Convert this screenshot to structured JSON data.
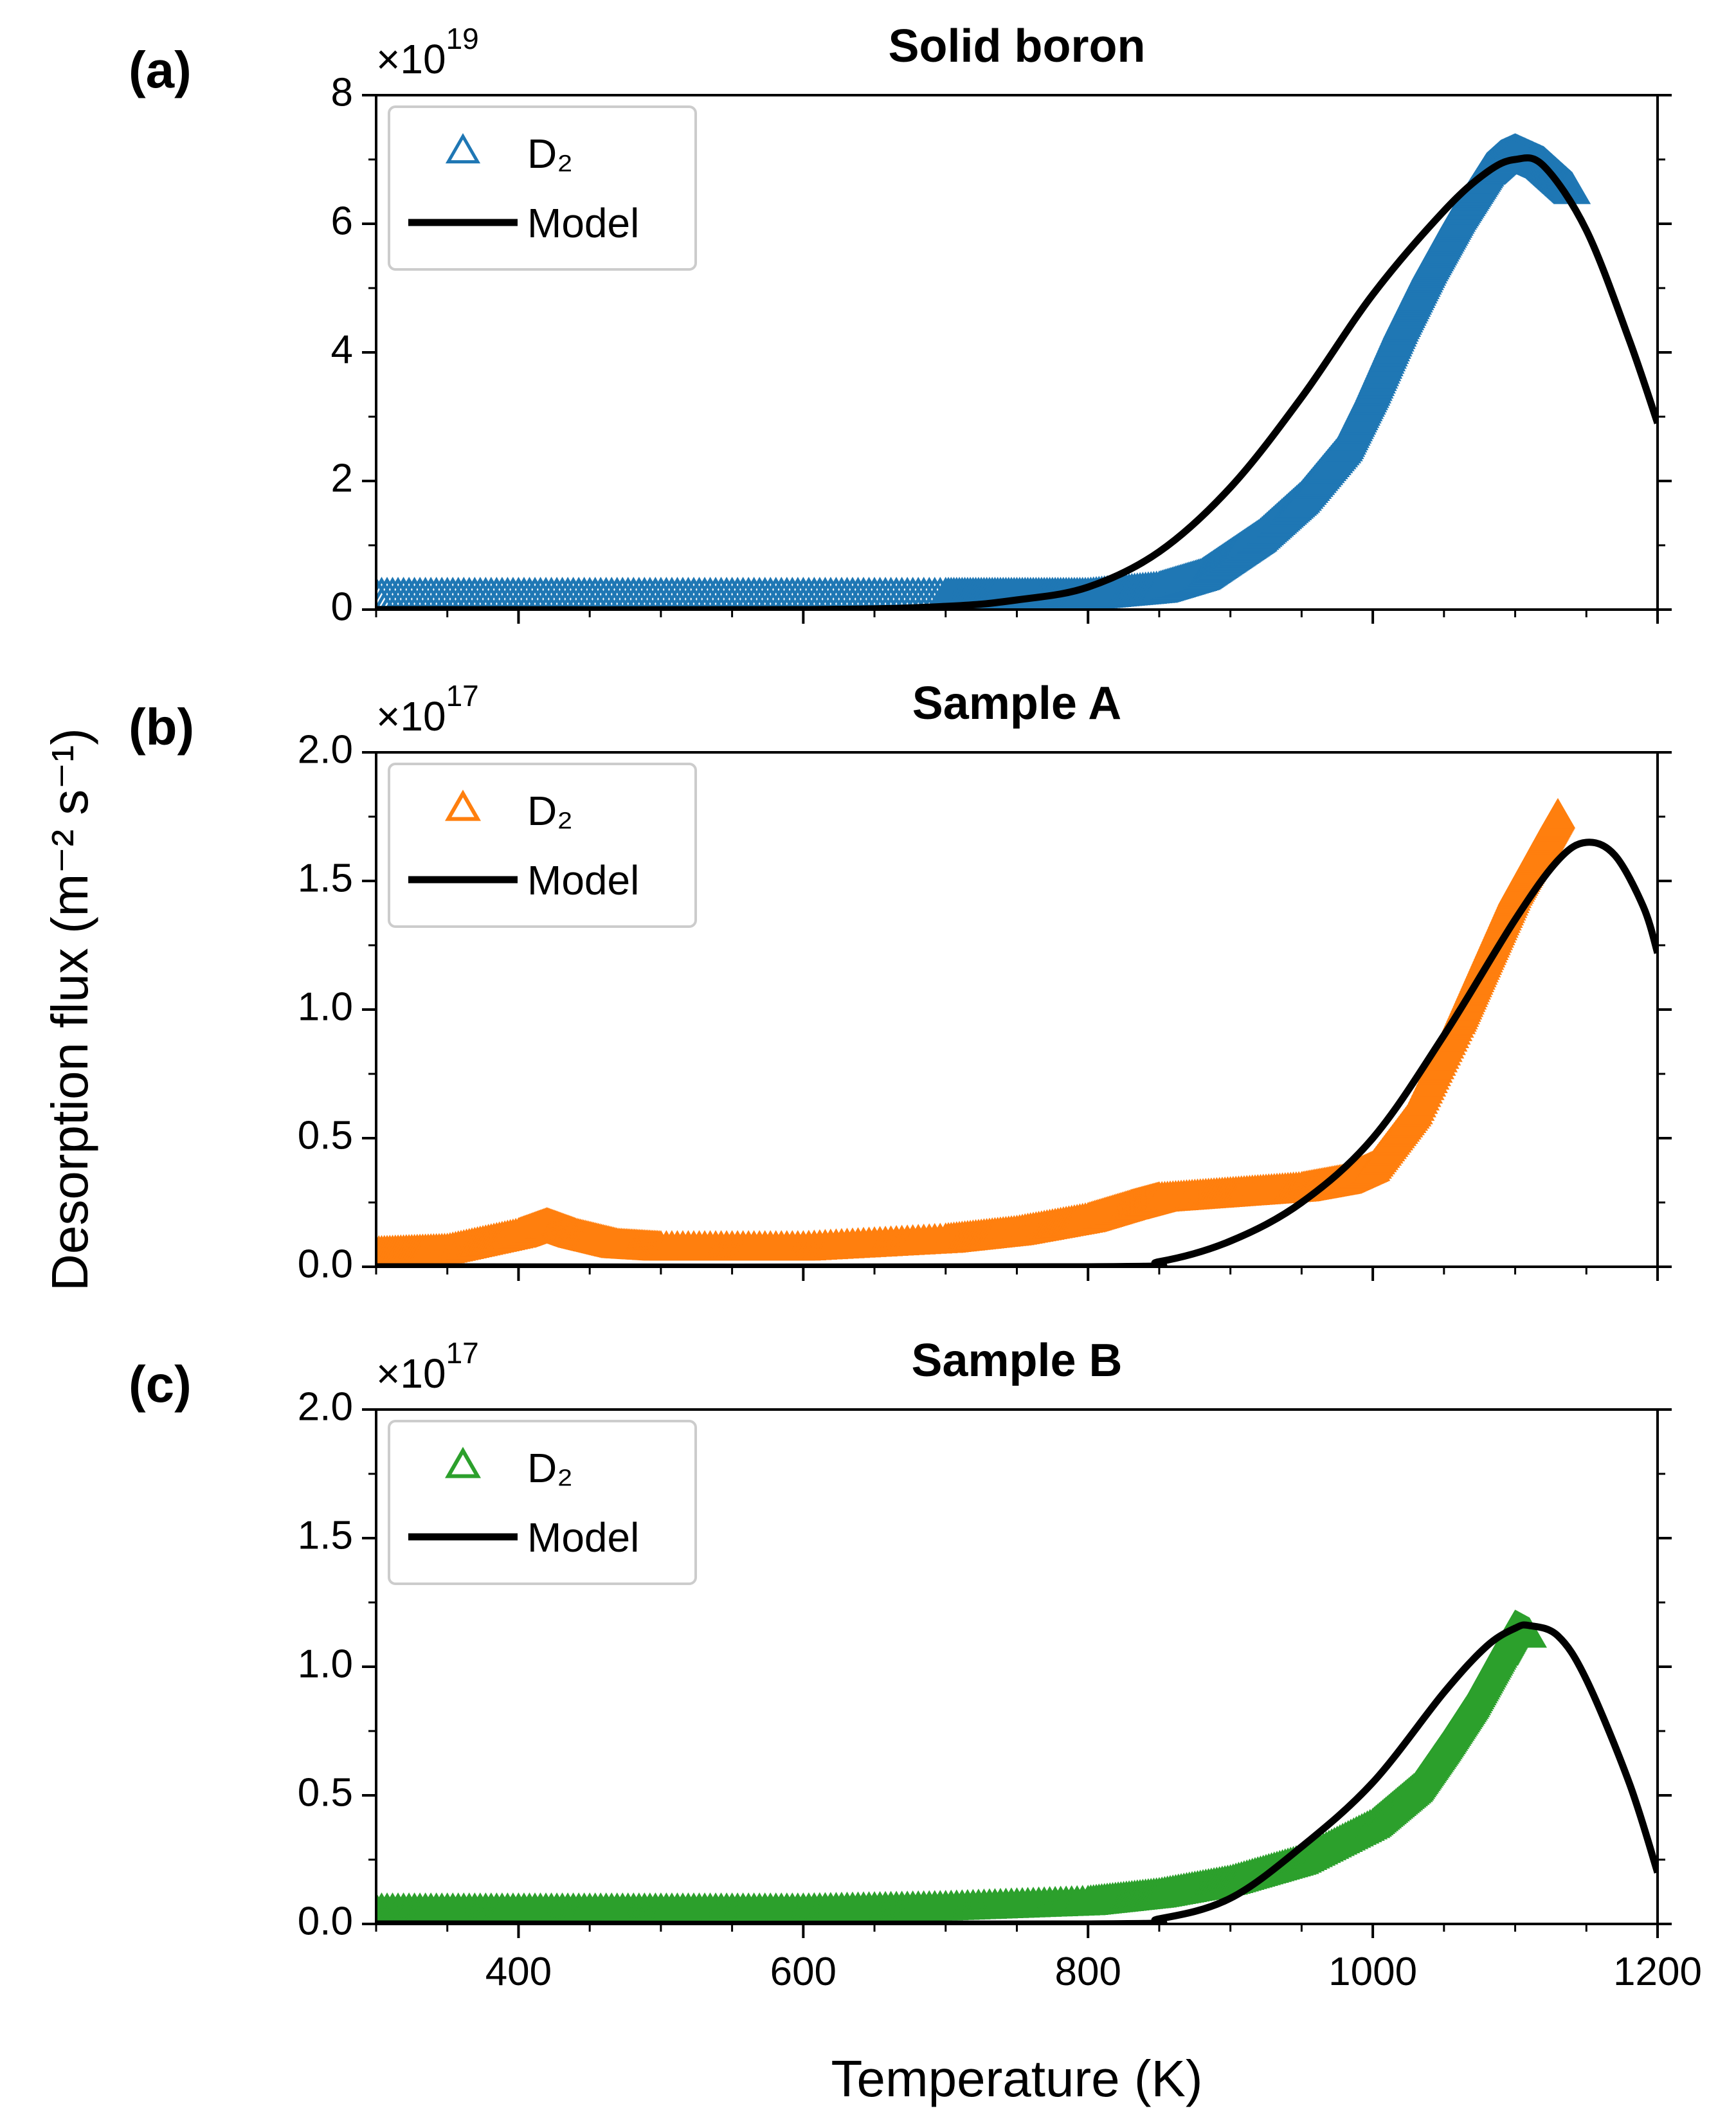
{
  "figure": {
    "ylabel": "Desorption flux (m⁻² s⁻¹)",
    "xlabel": "Temperature (K)"
  },
  "colors": {
    "blue": "#1f77b4",
    "orange": "#ff7f0e",
    "green": "#2ca02c",
    "model": "#000000"
  },
  "chart_data": [
    {
      "type": "scatter",
      "panel_label": "(a)",
      "title": "Solid boron",
      "multiplier_base": "×10",
      "multiplier_exp": "19",
      "xlim": [
        300,
        1200
      ],
      "ylim": [
        0,
        8
      ],
      "yticks": [
        "0",
        "2",
        "4",
        "6",
        "8"
      ],
      "xticks": [
        "400",
        "600",
        "800",
        "1000",
        "1200"
      ],
      "show_xtick_labels": false,
      "legend": {
        "position": "upper-left",
        "entries": [
          "D₂",
          "Model"
        ]
      },
      "series": [
        {
          "name": "D₂",
          "kind": "markers",
          "marker": "open-triangle",
          "color": "blue",
          "x": [
            300,
            400,
            500,
            600,
            700,
            750,
            800,
            850,
            880,
            900,
            920,
            950,
            980,
            1000,
            1020,
            1040,
            1060,
            1080,
            1090,
            1100,
            1110,
            1120,
            1130,
            1140
          ],
          "y": [
            0.2,
            0.2,
            0.2,
            0.2,
            0.2,
            0.2,
            0.2,
            0.3,
            0.5,
            0.8,
            1.1,
            1.7,
            2.5,
            3.4,
            4.4,
            5.3,
            6.1,
            6.8,
            7.0,
            7.1,
            7.0,
            6.9,
            6.7,
            6.5
          ]
        },
        {
          "name": "Model",
          "kind": "line",
          "color": "model",
          "x": [
            300,
            600,
            700,
            750,
            800,
            850,
            900,
            950,
            1000,
            1050,
            1080,
            1100,
            1120,
            1150,
            1180,
            1200
          ],
          "y": [
            0.0,
            0.0,
            0.05,
            0.15,
            0.35,
            0.9,
            1.9,
            3.3,
            4.9,
            6.2,
            6.8,
            7.0,
            6.9,
            5.9,
            4.2,
            2.9
          ]
        }
      ]
    },
    {
      "type": "scatter",
      "panel_label": "(b)",
      "title": "Sample A",
      "multiplier_base": "×10",
      "multiplier_exp": "17",
      "xlim": [
        300,
        1200
      ],
      "ylim": [
        0,
        2.0
      ],
      "yticks": [
        "0.0",
        "0.5",
        "1.0",
        "1.5",
        "2.0"
      ],
      "xticks": [
        "400",
        "600",
        "800",
        "1000",
        "1200"
      ],
      "show_xtick_labels": false,
      "legend": {
        "position": "upper-left",
        "entries": [
          "D₂",
          "Model"
        ]
      },
      "series": [
        {
          "name": "D₂",
          "kind": "markers",
          "marker": "filled-triangle",
          "color": "orange",
          "x": [
            300,
            350,
            400,
            420,
            440,
            470,
            500,
            600,
            700,
            750,
            800,
            830,
            850,
            900,
            950,
            980,
            1000,
            1030,
            1060,
            1080,
            1100,
            1120,
            1130
          ],
          "y": [
            0.05,
            0.06,
            0.12,
            0.16,
            0.12,
            0.08,
            0.07,
            0.07,
            0.1,
            0.13,
            0.18,
            0.23,
            0.26,
            0.28,
            0.3,
            0.33,
            0.38,
            0.6,
            0.95,
            1.2,
            1.45,
            1.65,
            1.75
          ]
        },
        {
          "name": "Model",
          "kind": "line",
          "color": "model",
          "x": [
            300,
            800,
            850,
            900,
            950,
            1000,
            1050,
            1100,
            1130,
            1150,
            1170,
            1190,
            1200
          ],
          "y": [
            0.0,
            0.0,
            0.02,
            0.1,
            0.25,
            0.5,
            0.9,
            1.35,
            1.58,
            1.65,
            1.6,
            1.4,
            1.22
          ]
        }
      ]
    },
    {
      "type": "scatter",
      "panel_label": "(c)",
      "title": "Sample B",
      "multiplier_base": "×10",
      "multiplier_exp": "17",
      "xlim": [
        300,
        1200
      ],
      "ylim": [
        0,
        2.0
      ],
      "yticks": [
        "0.0",
        "0.5",
        "1.0",
        "1.5",
        "2.0"
      ],
      "xticks": [
        "400",
        "600",
        "800",
        "1000",
        "1200"
      ],
      "show_xtick_labels": true,
      "legend": {
        "position": "upper-left",
        "entries": [
          "D₂",
          "Model"
        ]
      },
      "series": [
        {
          "name": "D₂",
          "kind": "markers",
          "marker": "filled-triangle",
          "color": "green",
          "x": [
            300,
            400,
            500,
            600,
            700,
            800,
            850,
            900,
            950,
            1000,
            1030,
            1050,
            1070,
            1090,
            1100,
            1110
          ],
          "y": [
            0.05,
            0.05,
            0.05,
            0.05,
            0.06,
            0.08,
            0.11,
            0.16,
            0.24,
            0.38,
            0.52,
            0.68,
            0.85,
            1.05,
            1.15,
            1.12
          ]
        },
        {
          "name": "Model",
          "kind": "line",
          "color": "model",
          "x": [
            300,
            800,
            850,
            900,
            950,
            1000,
            1050,
            1080,
            1100,
            1110,
            1130,
            1150,
            1180,
            1200
          ],
          "y": [
            0.0,
            0.0,
            0.02,
            0.1,
            0.3,
            0.55,
            0.9,
            1.08,
            1.15,
            1.16,
            1.12,
            0.95,
            0.55,
            0.2
          ]
        }
      ]
    }
  ]
}
